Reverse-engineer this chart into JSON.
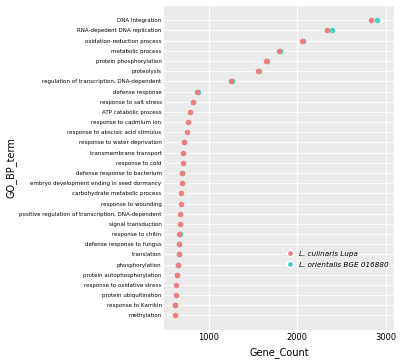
{
  "categories": [
    "methylation",
    "response to Karrikin",
    "protein ubiquitination",
    "response to oxidative stress",
    "protein autophosphorylation",
    "phosphorylation",
    "translation",
    "defense response to fungus",
    "response to chitin",
    "signal transduction",
    "positive regulation of transcription, DNA-dependent",
    "response to wounding",
    "carbohydrate metabolic process",
    "embryo development ending in seed dormancy",
    "defense response to bacterium",
    "response to cold",
    "transmembrane transport",
    "response to water deprivation",
    "response to abscisic acid stimulus",
    "response to cadmium ion",
    "ATP catabolic process",
    "response to salt stress",
    "defense response",
    "regulation of transcription, DNA-dependent",
    "proteolysis",
    "protein phosphorylation",
    "metabolic process",
    "oxidation-reduction process",
    "RNA-depedent DNA replication",
    "DNA Integration"
  ],
  "lupa_values": [
    620,
    625,
    630,
    635,
    645,
    655,
    660,
    665,
    670,
    675,
    680,
    685,
    690,
    695,
    700,
    705,
    710,
    720,
    750,
    770,
    790,
    820,
    870,
    1250,
    1560,
    1650,
    1800,
    2060,
    2340,
    2840
  ],
  "orientalis_values": [
    null,
    622,
    null,
    null,
    648,
    658,
    662,
    668,
    673,
    null,
    null,
    null,
    null,
    null,
    703,
    null,
    null,
    725,
    null,
    null,
    null,
    823,
    875,
    1260,
    1570,
    1660,
    1810,
    2070,
    2390,
    2900
  ],
  "lupa_color": "#F08080",
  "orientalis_color": "#48D1CC",
  "lupa_label": "L. culinaris Lupa",
  "orientalis_label": "L. orientalis BGE 016880",
  "xlabel": "Gene_Count",
  "ylabel": "GO_BP_term",
  "bg_color": "#EBEBEB",
  "grid_color": "#FFFFFF",
  "xlim": [
    500,
    3100
  ],
  "xticks": [
    1000,
    2000,
    3000
  ]
}
